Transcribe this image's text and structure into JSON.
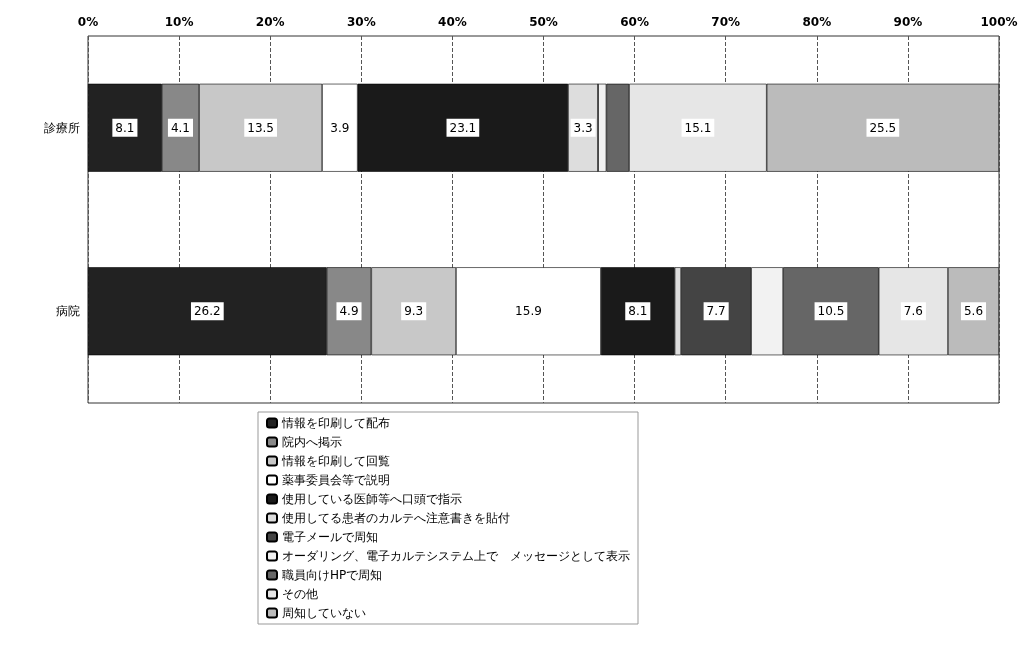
{
  "chart_data": {
    "type": "bar",
    "orientation": "horizontal",
    "stacked": true,
    "categories": [
      "診療所",
      "病院"
    ],
    "xlim": [
      0,
      100
    ],
    "xticks": [
      {
        "value": 0,
        "label": "0%"
      },
      {
        "value": 10,
        "label": "10%"
      },
      {
        "value": 20,
        "label": "20%"
      },
      {
        "value": 30,
        "label": "30%"
      },
      {
        "value": 40,
        "label": "40%"
      },
      {
        "value": 50,
        "label": "50%"
      },
      {
        "value": 60,
        "label": "60%"
      },
      {
        "value": 70,
        "label": "70%"
      },
      {
        "value": 80,
        "label": "80%"
      },
      {
        "value": 90,
        "label": "90%"
      },
      {
        "value": 100,
        "label": "100%"
      }
    ],
    "grid": "x",
    "legend": "bottom",
    "series": [
      {
        "name": "情報を印刷して配布",
        "color": "#222222",
        "values": [
          8.1,
          26.2
        ],
        "value_labels": [
          "8.1",
          "26.2"
        ]
      },
      {
        "name": "院内へ掲示",
        "color": "#888888",
        "values": [
          4.1,
          4.9
        ],
        "value_labels": [
          "4.1",
          "4.9"
        ]
      },
      {
        "name": "情報を印刷して回覧",
        "color": "#c8c8c8",
        "values": [
          13.5,
          9.3
        ],
        "value_labels": [
          "13.5",
          "9.3"
        ]
      },
      {
        "name": "薬事委員会等で説明",
        "color": "#ffffff",
        "values": [
          3.9,
          15.9
        ],
        "value_labels": [
          "3.9",
          "15.9"
        ]
      },
      {
        "name": "使用している医師等へ口頭で指示",
        "color": "#1a1a1a",
        "values": [
          23.1,
          8.1
        ],
        "value_labels": [
          "23.1",
          "8.1"
        ]
      },
      {
        "name": "使用してる患者のカルテへ注意書きを貼付",
        "color": "#dddddd",
        "values": [
          3.3,
          0.7
        ],
        "value_labels": [
          "3.3",
          null
        ]
      },
      {
        "name": "電子メールで周知",
        "color": "#444444",
        "values": [
          0,
          7.7
        ],
        "value_labels": [
          null,
          "7.7"
        ]
      },
      {
        "name": "オーダリング、電子カルテシステム上で　メッセージとして表示",
        "color": "#f2f2f2",
        "values": [
          0.9,
          3.5
        ],
        "value_labels": [
          null,
          null
        ]
      },
      {
        "name": "職員向けHPで周知",
        "color": "#666666",
        "values": [
          2.5,
          10.5
        ],
        "value_labels": [
          null,
          "10.5"
        ]
      },
      {
        "name": "その他",
        "color": "#e6e6e6",
        "values": [
          15.1,
          7.6
        ],
        "value_labels": [
          "15.1",
          "7.6"
        ]
      },
      {
        "name": "周知していない",
        "color": "#bbbbbb",
        "values": [
          25.5,
          5.6
        ],
        "value_labels": [
          "25.5",
          "5.6"
        ]
      }
    ]
  }
}
